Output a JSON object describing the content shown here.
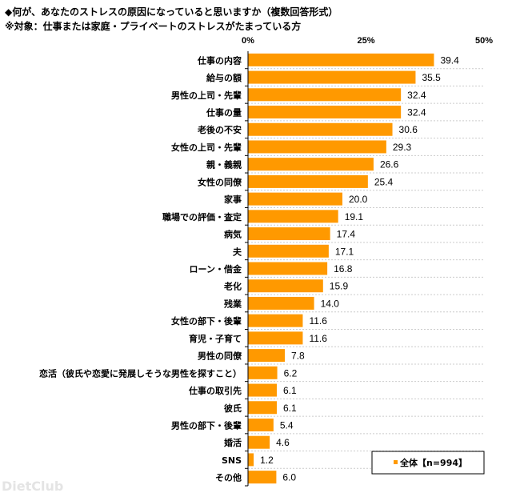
{
  "chart_data": {
    "type": "bar",
    "orientation": "horizontal",
    "title": "◆何が、あなたのストレスの原因になっていると思いますか（複数回答形式）",
    "subtitle": "※対象：仕事または家庭・プライベートのストレスがたまっている方",
    "xlim": [
      0,
      50
    ],
    "xticks": [
      "0%",
      "25%",
      "50%"
    ],
    "xtick_values": [
      0,
      25,
      50
    ],
    "categories": [
      "仕事の内容",
      "給与の額",
      "男性の上司・先輩",
      "仕事の量",
      "老後の不安",
      "女性の上司・先輩",
      "親・義親",
      "女性の同僚",
      "家事",
      "職場での評価・査定",
      "病気",
      "夫",
      "ローン・借金",
      "老化",
      "残業",
      "女性の部下・後輩",
      "育児・子育て",
      "男性の同僚",
      "恋活（彼氏や恋愛に発展しそうな男性を探すこと）",
      "仕事の取引先",
      "彼氏",
      "男性の部下・後輩",
      "婚活",
      "SNS",
      "その他"
    ],
    "series": [
      {
        "name": "全体【n=994】",
        "color": "#FF9900",
        "values": [
          39.4,
          35.5,
          32.4,
          32.4,
          30.6,
          29.3,
          26.6,
          25.4,
          20.0,
          19.1,
          17.4,
          17.1,
          16.8,
          15.9,
          14.0,
          11.6,
          11.6,
          7.8,
          6.2,
          6.1,
          6.1,
          5.4,
          4.6,
          1.2,
          6.0
        ]
      }
    ],
    "legend": "bottom-right",
    "grid": false
  },
  "watermark": "DietClub"
}
